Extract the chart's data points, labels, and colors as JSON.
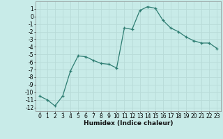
{
  "x": [
    0,
    1,
    2,
    3,
    4,
    5,
    6,
    7,
    8,
    9,
    10,
    11,
    12,
    13,
    14,
    15,
    16,
    17,
    18,
    19,
    20,
    21,
    22,
    23
  ],
  "y": [
    -10.5,
    -11.0,
    -11.8,
    -10.5,
    -7.2,
    -5.2,
    -5.3,
    -5.8,
    -6.2,
    -6.3,
    -6.8,
    -1.5,
    -1.7,
    0.8,
    1.3,
    1.1,
    -0.5,
    -1.5,
    -2.0,
    -2.7,
    -3.2,
    -3.5,
    -3.5,
    -4.2
  ],
  "color": "#2e7d72",
  "bg_color": "#c8ebe8",
  "grid_minor_color": "#daf0ed",
  "grid_major_color": "#b8dbd8",
  "xlabel": "Humidex (Indice chaleur)",
  "ylim": [
    -12.5,
    2.0
  ],
  "xlim": [
    -0.5,
    23.5
  ],
  "yticks": [
    1,
    0,
    -1,
    -2,
    -3,
    -4,
    -5,
    -6,
    -7,
    -8,
    -9,
    -10,
    -11,
    -12
  ],
  "xticks": [
    0,
    1,
    2,
    3,
    4,
    5,
    6,
    7,
    8,
    9,
    10,
    11,
    12,
    13,
    14,
    15,
    16,
    17,
    18,
    19,
    20,
    21,
    22,
    23
  ],
  "label_fontsize": 6.5,
  "tick_fontsize": 5.5
}
